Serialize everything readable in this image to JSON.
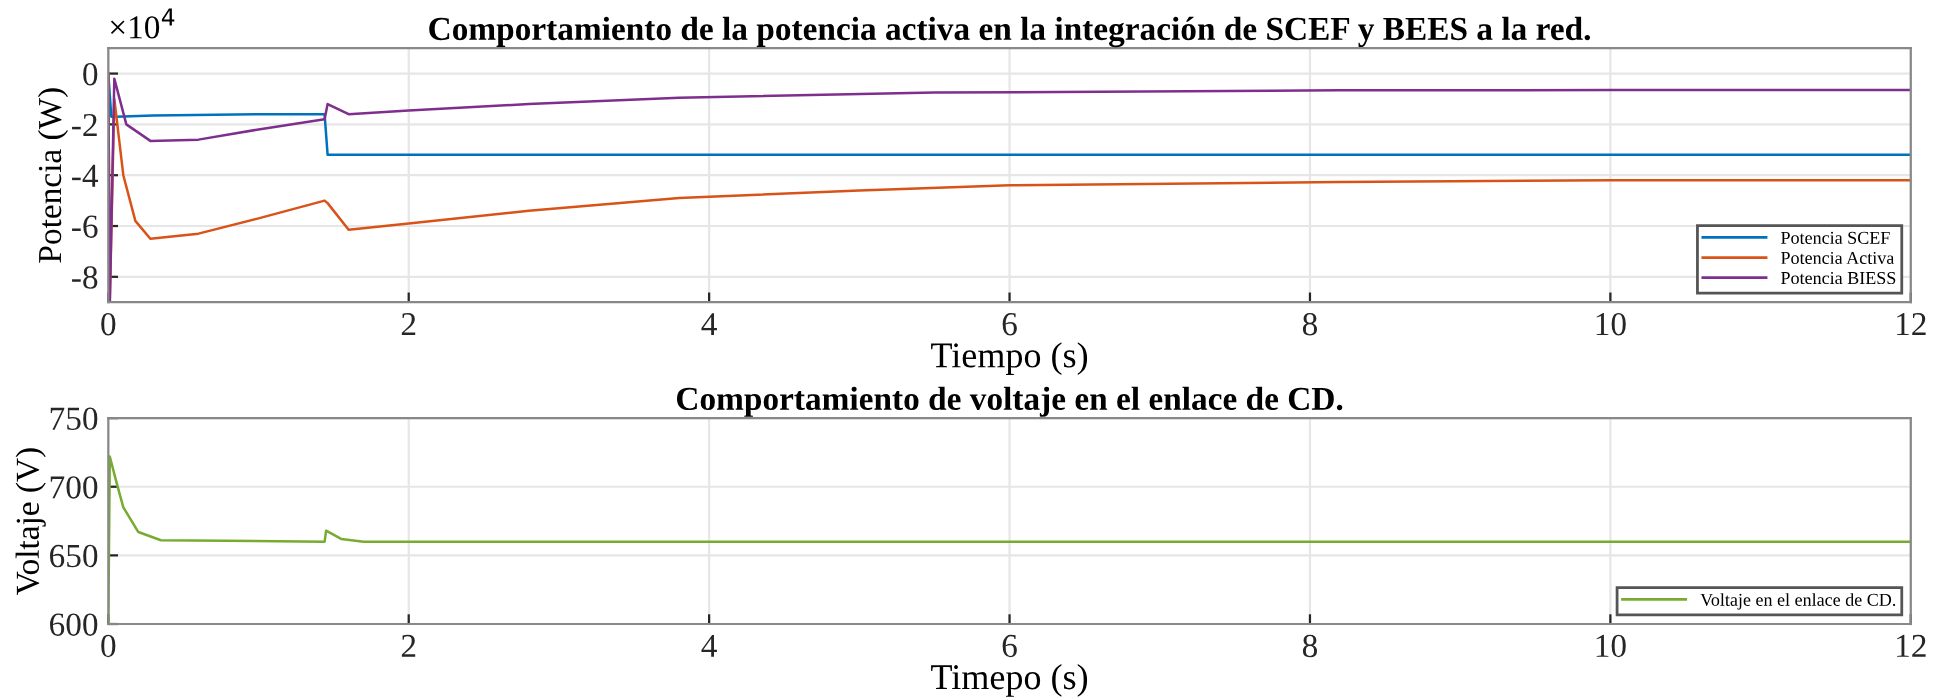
{
  "chart_data": [
    {
      "type": "line",
      "title": "Comportamiento de la potencia activa en la integración de SCEF y BEES a la red.",
      "xlabel": "Tiempo (s)",
      "ylabel": "Potencia (W)",
      "annotations": [
        "×10$^{4}$"
      ],
      "xlim": [
        0,
        12
      ],
      "xticks": [
        0,
        2,
        4,
        6,
        8,
        10,
        12
      ],
      "ylim": [
        -9,
        1
      ],
      "yticks": [
        -8,
        -6,
        -4,
        -2,
        0
      ],
      "grid": true,
      "legend": "bottom right",
      "series": [
        {
          "name": "Potencia SCEF",
          "color": "#0072bd",
          "x": [
            0,
            0.02,
            0.05,
            0.3,
            1.0,
            1.44,
            1.46,
            1.6,
            3,
            6,
            9,
            12
          ],
          "values": [
            0,
            -1.7,
            -1.7,
            -1.65,
            -1.6,
            -1.6,
            -3.2,
            -3.2,
            -3.2,
            -3.2,
            -3.2,
            -3.2
          ]
        },
        {
          "name": "Potencia Activa",
          "color": "#d95319",
          "x": [
            0,
            0.01,
            0.04,
            0.1,
            0.18,
            0.28,
            0.6,
            1.0,
            1.44,
            1.46,
            1.6,
            2,
            2.8,
            3.8,
            5,
            6,
            8.2,
            10,
            12
          ],
          "values": [
            0,
            -9,
            -1,
            -4,
            -5.8,
            -6.5,
            -6.3,
            -5.7,
            -5,
            -5.1,
            -6.15,
            -5.9,
            -5.4,
            -4.9,
            -4.6,
            -4.4,
            -4.27,
            -4.2,
            -4.2
          ]
        },
        {
          "name": "Potencia BIESS",
          "color": "#7e2f8e",
          "x": [
            0,
            0.01,
            0.04,
            0.12,
            0.28,
            0.6,
            1.0,
            1.44,
            1.46,
            1.6,
            2,
            2.8,
            3.8,
            5.5,
            8.2,
            10,
            12
          ],
          "values": [
            0,
            -9,
            -0.2,
            -2,
            -2.65,
            -2.6,
            -2.2,
            -1.8,
            -1.2,
            -1.6,
            -1.45,
            -1.2,
            -0.95,
            -0.75,
            -0.66,
            -0.65,
            -0.65
          ]
        }
      ]
    },
    {
      "type": "line",
      "title": "Comportamiento de voltaje en el enlace de CD.",
      "xlabel": "Timepo (s)",
      "ylabel": "Voltaje (V)",
      "xlim": [
        0,
        12
      ],
      "xticks": [
        0,
        2,
        4,
        6,
        8,
        10,
        12
      ],
      "ylim": [
        600,
        750
      ],
      "yticks": [
        600,
        650,
        700,
        750
      ],
      "grid": true,
      "legend": "bottom right",
      "series": [
        {
          "name": "Voltaje en el enlace de CD.",
          "color": "#77ac30",
          "x": [
            0,
            0.01,
            0.05,
            0.1,
            0.2,
            0.35,
            1.44,
            1.45,
            1.55,
            1.7,
            12
          ],
          "values": [
            600,
            722,
            705,
            685,
            667,
            661,
            660,
            668,
            662,
            660,
            660
          ]
        }
      ]
    }
  ]
}
